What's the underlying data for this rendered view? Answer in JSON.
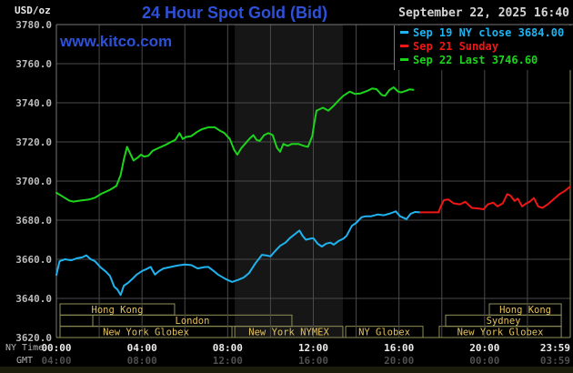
{
  "header": {
    "unit_label": "USD/oz",
    "title": "24 Hour Spot Gold (Bid)",
    "datetime": "September 22, 2025 16:40"
  },
  "watermark": "www.kitco.com",
  "legend": [
    {
      "label": "Sep 19 NY close 3684.00",
      "color": "#1fb3f0"
    },
    {
      "label": "Sep 21 Sunday",
      "color": "#f01616"
    },
    {
      "label": "Sep 22 Last 3746.60",
      "color": "#1bd41b"
    }
  ],
  "colors": {
    "bg": "#000000",
    "grid": "#4a4a4a",
    "frame_gray": "#787878",
    "frame_khaki": "#8f8f58",
    "band": "#161616",
    "session_border": "#8f8f58",
    "session_text": "#e3c25c",
    "y_label": "#bdbdbd",
    "x_label": "#ededed",
    "gmt_label": "#4f4f4f",
    "axis_caption": "#b5b5b5",
    "title": "#2e51d8",
    "date": "#d6d6d6"
  },
  "chart_data": {
    "type": "line",
    "title": "24 Hour Spot Gold (Bid)",
    "ylabel": "USD/oz",
    "ylim": [
      3620,
      3780
    ],
    "xlim_hours": [
      0,
      24
    ],
    "grid": {
      "x_step_hours": 2,
      "y_step": 20,
      "on": true
    },
    "y_ticks": [
      3780,
      3760,
      3740,
      3720,
      3700,
      3680,
      3660,
      3640,
      3620
    ],
    "x_ticks": [
      {
        "h": 0,
        "ny": "00:00",
        "gmt": "04:00"
      },
      {
        "h": 4,
        "ny": "04:00",
        "gmt": "08:00"
      },
      {
        "h": 8,
        "ny": "08:00",
        "gmt": "12:00"
      },
      {
        "h": 12,
        "ny": "12:00",
        "gmt": "16:00"
      },
      {
        "h": 16,
        "ny": "16:00",
        "gmt": "20:00"
      },
      {
        "h": 20,
        "ny": "20:00",
        "gmt": "00:00"
      },
      {
        "h": 23.983,
        "ny": "23:59",
        "gmt": "03:59"
      }
    ],
    "axis_captions": {
      "row1": "NY Time",
      "row2": "GMT"
    },
    "shaded_band_hours": [
      8.33,
      13.38
    ],
    "sessions": [
      {
        "row": 0,
        "h0": 0.17,
        "h1": 5.52,
        "label": "Hong Kong"
      },
      {
        "row": 0,
        "h0": 20.22,
        "h1": 23.58,
        "label": "Hong Kong"
      },
      {
        "row": 1,
        "h0": 0.17,
        "h1": 1.7,
        "label": ""
      },
      {
        "row": 1,
        "h0": 1.7,
        "h1": 11.0,
        "label": "London"
      },
      {
        "row": 1,
        "h0": 18.18,
        "h1": 23.58,
        "label": "Sydney"
      },
      {
        "row": 2,
        "h0": 0.17,
        "h1": 8.2,
        "label": "New York Globex"
      },
      {
        "row": 2,
        "h0": 8.33,
        "h1": 13.38,
        "label": "New York NYMEX"
      },
      {
        "row": 2,
        "h0": 13.51,
        "h1": 17.12,
        "label": "NY Globex"
      },
      {
        "row": 2,
        "h0": 17.88,
        "h1": 23.58,
        "label": "New York Globex"
      }
    ],
    "series": [
      {
        "name": "Sep 19 NY close 3684.00",
        "color": "#1fb3f0",
        "points": [
          [
            0,
            3652
          ],
          [
            0.15,
            3659
          ],
          [
            0.4,
            3660
          ],
          [
            0.7,
            3659.5
          ],
          [
            0.95,
            3660.5
          ],
          [
            1.2,
            3661
          ],
          [
            1.4,
            3662
          ],
          [
            1.6,
            3660
          ],
          [
            1.8,
            3659
          ],
          [
            2.05,
            3656
          ],
          [
            2.3,
            3653.8
          ],
          [
            2.5,
            3651.5
          ],
          [
            2.7,
            3646
          ],
          [
            2.85,
            3644.5
          ],
          [
            3.0,
            3641.7
          ],
          [
            3.15,
            3646.5
          ],
          [
            3.35,
            3648
          ],
          [
            3.55,
            3650
          ],
          [
            3.75,
            3652.2
          ],
          [
            4.0,
            3654
          ],
          [
            4.2,
            3655
          ],
          [
            4.4,
            3656.1
          ],
          [
            4.6,
            3652.2
          ],
          [
            4.8,
            3654
          ],
          [
            5.0,
            3655.3
          ],
          [
            5.3,
            3656
          ],
          [
            5.65,
            3656.8
          ],
          [
            6.0,
            3657.3
          ],
          [
            6.3,
            3657
          ],
          [
            6.6,
            3655.3
          ],
          [
            6.9,
            3656
          ],
          [
            7.1,
            3656.1
          ],
          [
            7.35,
            3654
          ],
          [
            7.55,
            3652.2
          ],
          [
            7.9,
            3649.9
          ],
          [
            8.2,
            3648.4
          ],
          [
            8.5,
            3649.5
          ],
          [
            8.75,
            3650.7
          ],
          [
            9.0,
            3653
          ],
          [
            9.3,
            3658
          ],
          [
            9.6,
            3662.3
          ],
          [
            9.8,
            3662
          ],
          [
            10.0,
            3661.5
          ],
          [
            10.2,
            3664
          ],
          [
            10.45,
            3666.9
          ],
          [
            10.7,
            3668.5
          ],
          [
            10.9,
            3670.8
          ],
          [
            11.15,
            3673
          ],
          [
            11.35,
            3674.7
          ],
          [
            11.5,
            3672
          ],
          [
            11.65,
            3670
          ],
          [
            11.85,
            3670.5
          ],
          [
            12.0,
            3670.8
          ],
          [
            12.2,
            3668
          ],
          [
            12.4,
            3666.5
          ],
          [
            12.6,
            3668
          ],
          [
            12.8,
            3668.5
          ],
          [
            12.95,
            3667.5
          ],
          [
            13.2,
            3669.5
          ],
          [
            13.4,
            3670.5
          ],
          [
            13.55,
            3672
          ],
          [
            13.8,
            3677.1
          ],
          [
            14.0,
            3678.6
          ],
          [
            14.25,
            3681.5
          ],
          [
            14.45,
            3682
          ],
          [
            14.7,
            3682
          ],
          [
            15.0,
            3682.9
          ],
          [
            15.3,
            3682.5
          ],
          [
            15.6,
            3683.5
          ],
          [
            15.85,
            3684.5
          ],
          [
            16.05,
            3682
          ],
          [
            16.25,
            3681
          ],
          [
            16.35,
            3680.5
          ],
          [
            16.55,
            3683.3
          ],
          [
            16.75,
            3684.2
          ],
          [
            17.0,
            3684
          ]
        ]
      },
      {
        "name": "Sep 21 Sunday",
        "color": "#f01616",
        "points": [
          [
            17.0,
            3684
          ],
          [
            17.85,
            3684
          ],
          [
            17.95,
            3687
          ],
          [
            18.1,
            3690.3
          ],
          [
            18.3,
            3690.6
          ],
          [
            18.55,
            3688.6
          ],
          [
            18.85,
            3688.1
          ],
          [
            19.1,
            3689.4
          ],
          [
            19.4,
            3686.3
          ],
          [
            19.7,
            3686
          ],
          [
            19.95,
            3685.6
          ],
          [
            20.15,
            3688.1
          ],
          [
            20.4,
            3689
          ],
          [
            20.6,
            3687
          ],
          [
            20.85,
            3688.6
          ],
          [
            21.05,
            3693.3
          ],
          [
            21.2,
            3692.6
          ],
          [
            21.4,
            3689.8
          ],
          [
            21.55,
            3691
          ],
          [
            21.75,
            3687
          ],
          [
            21.95,
            3688.6
          ],
          [
            22.1,
            3689.4
          ],
          [
            22.3,
            3691.3
          ],
          [
            22.5,
            3687
          ],
          [
            22.7,
            3686.3
          ],
          [
            22.95,
            3688.1
          ],
          [
            23.2,
            3690.5
          ],
          [
            23.5,
            3693.3
          ],
          [
            23.75,
            3695
          ],
          [
            23.98,
            3697
          ]
        ]
      },
      {
        "name": "Sep 22 Last 3746.60",
        "color": "#1bd41b",
        "points": [
          [
            0,
            3694
          ],
          [
            0.3,
            3692
          ],
          [
            0.6,
            3690
          ],
          [
            0.8,
            3689.5
          ],
          [
            1.1,
            3690
          ],
          [
            1.5,
            3690.5
          ],
          [
            1.8,
            3691.5
          ],
          [
            2.1,
            3693.5
          ],
          [
            2.5,
            3695.5
          ],
          [
            2.8,
            3697.5
          ],
          [
            3.0,
            3703
          ],
          [
            3.15,
            3711
          ],
          [
            3.3,
            3717.5
          ],
          [
            3.45,
            3714
          ],
          [
            3.6,
            3710.5
          ],
          [
            3.8,
            3712
          ],
          [
            3.95,
            3713.5
          ],
          [
            4.1,
            3712.5
          ],
          [
            4.3,
            3713
          ],
          [
            4.5,
            3715.5
          ],
          [
            4.8,
            3717
          ],
          [
            5.1,
            3718.5
          ],
          [
            5.35,
            3720
          ],
          [
            5.55,
            3721
          ],
          [
            5.75,
            3724.5
          ],
          [
            5.9,
            3721.5
          ],
          [
            6.05,
            3722.5
          ],
          [
            6.3,
            3723
          ],
          [
            6.55,
            3725
          ],
          [
            6.8,
            3726.5
          ],
          [
            7.1,
            3727.5
          ],
          [
            7.4,
            3727.5
          ],
          [
            7.6,
            3726
          ],
          [
            7.85,
            3724.5
          ],
          [
            8.1,
            3721.5
          ],
          [
            8.3,
            3716
          ],
          [
            8.45,
            3713.5
          ],
          [
            8.65,
            3717
          ],
          [
            8.85,
            3719.5
          ],
          [
            9.05,
            3722
          ],
          [
            9.2,
            3723.5
          ],
          [
            9.35,
            3721
          ],
          [
            9.5,
            3720.5
          ],
          [
            9.7,
            3723.5
          ],
          [
            9.9,
            3724.5
          ],
          [
            10.1,
            3723.5
          ],
          [
            10.3,
            3717
          ],
          [
            10.45,
            3715
          ],
          [
            10.6,
            3719
          ],
          [
            10.8,
            3718
          ],
          [
            11.0,
            3719
          ],
          [
            11.3,
            3719
          ],
          [
            11.55,
            3718
          ],
          [
            11.75,
            3717.5
          ],
          [
            11.95,
            3723
          ],
          [
            12.05,
            3730
          ],
          [
            12.15,
            3736
          ],
          [
            12.45,
            3737.5
          ],
          [
            12.7,
            3736
          ],
          [
            12.95,
            3738.5
          ],
          [
            13.2,
            3741.5
          ],
          [
            13.4,
            3743.6
          ],
          [
            13.7,
            3745.7
          ],
          [
            13.95,
            3744.5
          ],
          [
            14.2,
            3744.8
          ],
          [
            14.5,
            3746
          ],
          [
            14.75,
            3747.3
          ],
          [
            14.95,
            3747
          ],
          [
            15.2,
            3744
          ],
          [
            15.35,
            3743.6
          ],
          [
            15.55,
            3746.5
          ],
          [
            15.75,
            3747.9
          ],
          [
            15.95,
            3745.8
          ],
          [
            16.1,
            3745.3
          ],
          [
            16.3,
            3746
          ],
          [
            16.5,
            3746.9
          ],
          [
            16.67,
            3746.6
          ]
        ]
      }
    ]
  }
}
